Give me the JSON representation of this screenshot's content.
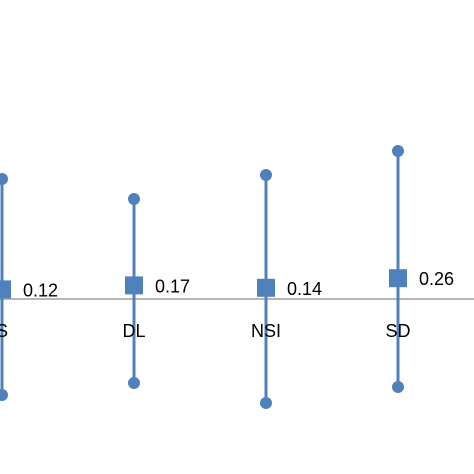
{
  "chart_data": {
    "type": "scatter",
    "style": "error-bar point estimates",
    "categories": [
      "S",
      "DL",
      "NSI",
      "SD"
    ],
    "values": [
      0.12,
      0.17,
      0.14,
      0.26
    ],
    "data_labels": [
      "0.12",
      "0.17",
      "0.14",
      "0.26"
    ],
    "upper": [
      1.5,
      1.25,
      1.55,
      1.85
    ],
    "lower": [
      -1.2,
      -1.05,
      -1.3,
      -1.1
    ],
    "ylim": [
      -1.5,
      2.2
    ],
    "title": "",
    "xlabel": "",
    "ylabel": "",
    "grid": false,
    "legend": "none",
    "colors": {
      "series": "#4f81bd",
      "axis": "#a0a0a0",
      "text": "#000000"
    }
  }
}
